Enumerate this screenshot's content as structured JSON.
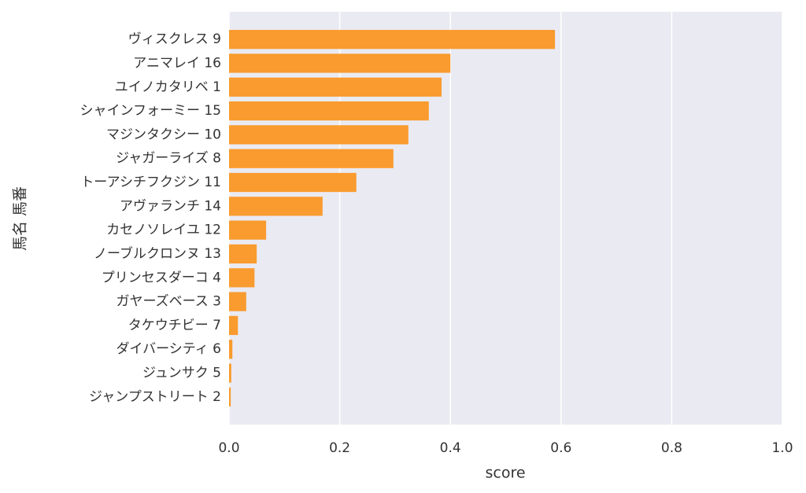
{
  "chart_data": {
    "type": "barh",
    "xlabel": "score",
    "ylabel": "馬名 馬番",
    "categories": [
      "ヴィスクレス 9",
      "アニマレイ 16",
      "ユイノカタリベ 1",
      "シャインフォーミー 15",
      "マジンタクシー 10",
      "ジャガーライズ 8",
      "トーアシチフクジン 11",
      "アヴァランチ 14",
      "カセノソレイユ 12",
      "ノーブルクロンヌ 13",
      "プリンセスダーコ 4",
      "ガヤーズベース 3",
      "タケウチビー 7",
      "ダイバーシティ 6",
      "ジュンサク 5",
      "ジャンプストリート 2"
    ],
    "values": [
      0.589,
      0.4,
      0.384,
      0.361,
      0.324,
      0.297,
      0.23,
      0.169,
      0.067,
      0.05,
      0.046,
      0.031,
      0.016,
      0.006,
      0.004,
      0.003
    ],
    "color": "#f99b2e",
    "xlim": [
      0,
      1
    ],
    "xticks": [
      {
        "value": 0,
        "label": "0.0"
      },
      0.2,
      0.4,
      0.6,
      0.8,
      {
        "value": 1,
        "label": "1.0"
      }
    ],
    "grid": true
  }
}
